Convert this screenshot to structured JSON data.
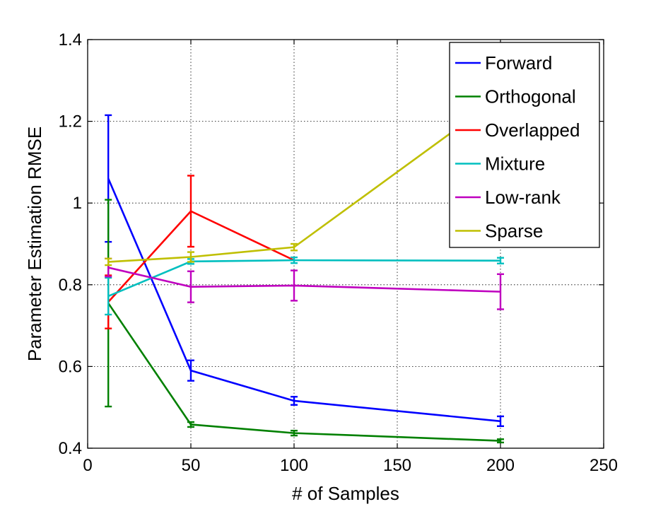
{
  "chart_data": {
    "type": "line",
    "title": "",
    "xlabel": "# of Samples",
    "ylabel": "Parameter Estimation RMSE",
    "xlim": [
      0,
      250
    ],
    "ylim": [
      0.4,
      1.4
    ],
    "xticks": [
      0,
      50,
      100,
      150,
      200,
      250
    ],
    "yticks": [
      0.4,
      0.6,
      0.8,
      1.0,
      1.2,
      1.4
    ],
    "xtick_labels": [
      "0",
      "50",
      "100",
      "150",
      "200",
      "250"
    ],
    "ytick_labels": [
      "0.4",
      "0.6",
      "0.8",
      "1",
      "1.2",
      "1.4"
    ],
    "grid": true,
    "legend_position": "top-right",
    "x": [
      10,
      50,
      100,
      200
    ],
    "series": [
      {
        "name": "Forward",
        "color": "#0000ff",
        "values": [
          1.06,
          0.59,
          0.516,
          0.466
        ],
        "errors": [
          0.155,
          0.025,
          0.01,
          0.012
        ]
      },
      {
        "name": "Orthogonal",
        "color": "#008000",
        "values": [
          0.755,
          0.458,
          0.437,
          0.418
        ],
        "errors": [
          0.253,
          0.006,
          0.006,
          0.004
        ]
      },
      {
        "name": "Overlapped",
        "color": "#ff0000",
        "values": [
          0.758,
          0.98,
          0.86,
          null
        ],
        "errors": [
          0.065,
          0.087,
          0,
          0
        ]
      },
      {
        "name": "Mixture",
        "color": "#00bfbf",
        "values": [
          0.772,
          0.857,
          0.86,
          0.859
        ],
        "errors": [
          0.045,
          0.006,
          0.007,
          0.007
        ]
      },
      {
        "name": "Low-rank",
        "color": "#bf00bf",
        "values": [
          0.842,
          0.795,
          0.798,
          0.783
        ],
        "errors": [
          0.022,
          0.038,
          0.037,
          0.043
        ]
      },
      {
        "name": "Sparse",
        "color": "#bfbf00",
        "values": [
          0.856,
          0.868,
          0.892,
          1.26
        ],
        "errors": [
          0.008,
          0.012,
          0.008,
          0
        ]
      }
    ]
  }
}
